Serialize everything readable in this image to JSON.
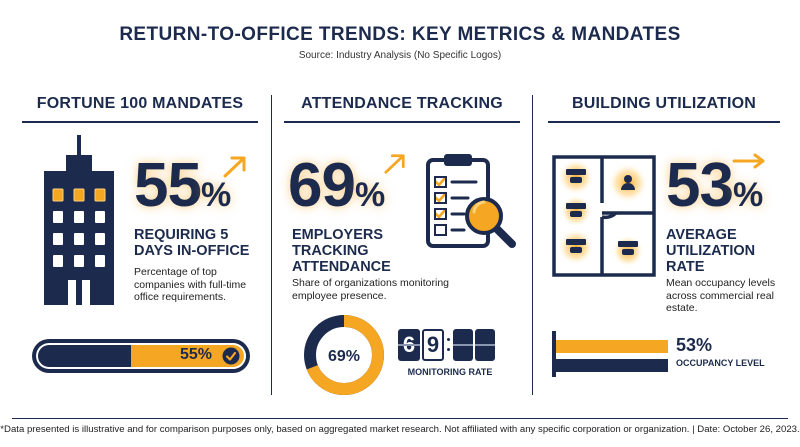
{
  "header": {
    "title": "RETURN-TO-OFFICE TRENDS: KEY METRICS & MANDATES",
    "subtitle": "Source: Industry Analysis (No Specific Logos)"
  },
  "sections": [
    {
      "title": "FORTUNE 100 MANDATES",
      "value": "55",
      "unit": "%",
      "label_lines": [
        "REQUIRING 5",
        "DAYS IN-OFFICE"
      ],
      "description_lines": [
        "Percentage of top",
        "companies with full-time",
        "office requirements."
      ],
      "bar_label": "55%",
      "bar_value": 0.55
    },
    {
      "title": "ATTENDANCE TRACKING",
      "value": "69",
      "unit": "%",
      "label_lines": [
        "EMPLOYERS",
        "TRACKING",
        "ATTENDANCE"
      ],
      "description_lines": [
        "Share of organizations monitoring",
        "employee presence."
      ],
      "donut_label": "69%",
      "donut_value": 0.69,
      "counter_digits": [
        "6",
        "9"
      ],
      "counter_caption": "MONITORING RATE"
    },
    {
      "title": "BUILDING UTILIZATION",
      "value": "53",
      "unit": "%",
      "label_lines": [
        "AVERAGE",
        "UTILIZATION",
        "RATE"
      ],
      "description_lines": [
        "Mean occupancy levels",
        "across commercial real",
        "estate."
      ],
      "bar_label": "53%",
      "bar_caption": "OCCUPANCY LEVEL",
      "bar_value": 0.53
    }
  ],
  "footer": "*Data presented is illustrative and for comparison purposes only, based on aggregated market research. Not affiliated with any specific corporation or organization. | Date: October 26, 2023.",
  "colors": {
    "navy": "#1c2b4d",
    "accent": "#f5a623",
    "glow": "#ffd27a"
  },
  "icons": [
    "skyscraper-icon",
    "trend-arrow-icon",
    "clipboard-checklist-icon",
    "magnifier-icon",
    "floor-plan-icon",
    "checkmark-icon"
  ]
}
